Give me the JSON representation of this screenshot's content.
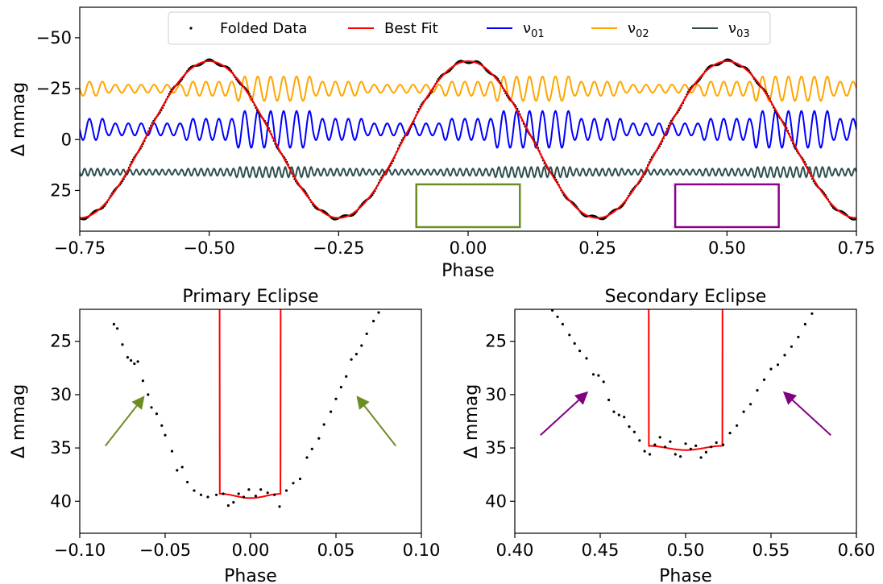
{
  "chart_data": [
    {
      "type": "line",
      "panel": "top",
      "xlabel": "Phase",
      "ylabel": "Δ mmag",
      "xlim": [
        -0.75,
        0.75
      ],
      "ylim": [
        45,
        -65
      ],
      "y_inverted": true,
      "xticks": [
        -0.75,
        -0.5,
        -0.25,
        0.0,
        0.25,
        0.5,
        0.75
      ],
      "xtick_labels": [
        "−0.75",
        "−0.50",
        "−0.25",
        "0.00",
        "0.25",
        "0.50",
        "0.75"
      ],
      "yticks": [
        -50,
        -25,
        0,
        25
      ],
      "ytick_labels": [
        "−50",
        "−25",
        "0",
        "25"
      ],
      "grid": false,
      "legend_position": "top-center",
      "legend": [
        {
          "label": "Folded Data",
          "kind": "points",
          "color": "#000000"
        },
        {
          "label": "Best Fit",
          "kind": "line",
          "color": "#ff0000"
        },
        {
          "label": "ν01",
          "base": "ν",
          "sub": "01",
          "kind": "line",
          "color": "#0000ff"
        },
        {
          "label": "ν02",
          "base": "ν",
          "sub": "02",
          "kind": "line",
          "color": "#ffa500"
        },
        {
          "label": "ν03",
          "base": "ν",
          "sub": "03",
          "kind": "line",
          "color": "#2f4f4f"
        }
      ],
      "best_fit": {
        "amplitude": 38.5,
        "cycles": 2,
        "max_y": -41.5,
        "min_y": 40.0
      },
      "series": [
        {
          "name": "ν01",
          "color": "#0000ff",
          "offset": -5,
          "amplitude": 9,
          "quiet_amplitude": 1.5,
          "frequency_per_phase": 40
        },
        {
          "name": "ν02",
          "color": "#ffa500",
          "offset": -25,
          "amplitude": 6,
          "quiet_amplitude": 1.0,
          "frequency_per_phase": 40
        },
        {
          "name": "ν03",
          "color": "#2f4f4f",
          "offset": 16,
          "amplitude": 2.5,
          "quiet_amplitude": 1.0,
          "frequency_per_phase": 80
        }
      ],
      "highlight_boxes": [
        {
          "name": "primary-eclipse-box",
          "x": [
            -0.1,
            0.1
          ],
          "y": [
            22,
            43
          ],
          "color": "#6b8e23"
        },
        {
          "name": "secondary-eclipse-box",
          "x": [
            0.4,
            0.6
          ],
          "y": [
            22,
            43
          ],
          "color": "#8b008b"
        }
      ]
    },
    {
      "type": "line",
      "panel": "bottom-left",
      "title": "Primary Eclipse",
      "xlabel": "Phase",
      "ylabel": "Δ mmag",
      "xlim": [
        -0.1,
        0.1
      ],
      "ylim": [
        43,
        22
      ],
      "y_inverted": true,
      "xticks": [
        -0.1,
        -0.05,
        0.0,
        0.05,
        0.1
      ],
      "xtick_labels": [
        "−0.10",
        "−0.05",
        "0.00",
        "0.05",
        "0.10"
      ],
      "yticks": [
        25,
        30,
        35,
        40
      ],
      "ytick_labels": [
        "25",
        "30",
        "35",
        "40"
      ],
      "fit_color": "#ff0000",
      "fit": {
        "center": 0.0,
        "depth": 39.5,
        "flat_half_width": 0.018
      },
      "points": [
        [
          -0.08,
          23.4
        ],
        [
          -0.078,
          23.8
        ],
        [
          -0.075,
          25.3
        ],
        [
          -0.072,
          26.5
        ],
        [
          -0.07,
          26.8
        ],
        [
          -0.068,
          27.1
        ],
        [
          -0.066,
          26.9
        ],
        [
          -0.063,
          28.7
        ],
        [
          -0.06,
          30.0
        ],
        [
          -0.058,
          31.2
        ],
        [
          -0.055,
          31.8
        ],
        [
          -0.052,
          32.9
        ],
        [
          -0.05,
          33.8
        ],
        [
          -0.046,
          35.3
        ],
        [
          -0.043,
          37.1
        ],
        [
          -0.04,
          36.8
        ],
        [
          -0.037,
          38.2
        ],
        [
          -0.033,
          39.0
        ],
        [
          -0.029,
          39.4
        ],
        [
          -0.025,
          39.6
        ],
        [
          -0.02,
          39.4
        ],
        [
          -0.016,
          39.3
        ],
        [
          -0.013,
          40.4
        ],
        [
          -0.01,
          40.1
        ],
        [
          -0.007,
          39.3
        ],
        [
          -0.004,
          39.6
        ],
        [
          -0.001,
          38.9
        ],
        [
          0.003,
          39.5
        ],
        [
          0.006,
          38.9
        ],
        [
          0.01,
          39.2
        ],
        [
          0.014,
          39.4
        ],
        [
          0.017,
          40.5
        ],
        [
          0.021,
          39.0
        ],
        [
          0.025,
          38.3
        ],
        [
          0.029,
          37.9
        ],
        [
          0.033,
          35.9
        ],
        [
          0.036,
          35.1
        ],
        [
          0.04,
          34.1
        ],
        [
          0.043,
          32.8
        ],
        [
          0.047,
          31.6
        ],
        [
          0.05,
          30.4
        ],
        [
          0.053,
          29.3
        ],
        [
          0.056,
          28.3
        ],
        [
          0.059,
          26.7
        ],
        [
          0.062,
          26.2
        ],
        [
          0.065,
          25.4
        ],
        [
          0.068,
          24.3
        ],
        [
          0.072,
          23.1
        ],
        [
          0.075,
          22.3
        ]
      ],
      "arrows": [
        {
          "from": [
            -0.085,
            34.8
          ],
          "to": [
            -0.062,
            30.1
          ],
          "color": "#6b8e23"
        },
        {
          "from": [
            0.085,
            34.8
          ],
          "to": [
            0.062,
            30.1
          ],
          "color": "#6b8e23"
        }
      ]
    },
    {
      "type": "line",
      "panel": "bottom-right",
      "title": "Secondary Eclipse",
      "xlabel": "Phase",
      "ylabel": "Δ mmag",
      "xlim": [
        0.4,
        0.6
      ],
      "ylim": [
        43,
        22
      ],
      "y_inverted": true,
      "xticks": [
        0.4,
        0.45,
        0.5,
        0.55,
        0.6
      ],
      "xtick_labels": [
        "0.40",
        "0.45",
        "0.50",
        "0.55",
        "0.60"
      ],
      "yticks": [
        25,
        30,
        35,
        40
      ],
      "ytick_labels": [
        "25",
        "30",
        "35",
        "40"
      ],
      "fit_color": "#ff0000",
      "fit": {
        "center": 0.5,
        "depth": 35.0,
        "flat_half_width": 0.022
      },
      "points": [
        [
          0.422,
          22.1
        ],
        [
          0.425,
          22.7
        ],
        [
          0.428,
          23.4
        ],
        [
          0.432,
          24.4
        ],
        [
          0.435,
          25.2
        ],
        [
          0.438,
          25.9
        ],
        [
          0.442,
          26.6
        ],
        [
          0.446,
          28.1
        ],
        [
          0.449,
          28.2
        ],
        [
          0.452,
          28.8
        ],
        [
          0.455,
          30.5
        ],
        [
          0.458,
          31.6
        ],
        [
          0.461,
          31.9
        ],
        [
          0.464,
          32.1
        ],
        [
          0.467,
          33.0
        ],
        [
          0.47,
          33.5
        ],
        [
          0.473,
          34.3
        ],
        [
          0.476,
          35.3
        ],
        [
          0.479,
          35.6
        ],
        [
          0.482,
          34.7
        ],
        [
          0.485,
          34.0
        ],
        [
          0.488,
          34.9
        ],
        [
          0.491,
          34.4
        ],
        [
          0.494,
          35.6
        ],
        [
          0.497,
          35.8
        ],
        [
          0.5,
          34.6
        ],
        [
          0.503,
          35.1
        ],
        [
          0.506,
          34.8
        ],
        [
          0.509,
          35.9
        ],
        [
          0.512,
          35.4
        ],
        [
          0.515,
          34.9
        ],
        [
          0.518,
          34.5
        ],
        [
          0.522,
          34.7
        ],
        [
          0.526,
          33.6
        ],
        [
          0.53,
          32.9
        ],
        [
          0.534,
          31.6
        ],
        [
          0.538,
          30.9
        ],
        [
          0.542,
          29.6
        ],
        [
          0.546,
          28.6
        ],
        [
          0.55,
          27.6
        ],
        [
          0.554,
          27.2
        ],
        [
          0.558,
          26.3
        ],
        [
          0.562,
          25.5
        ],
        [
          0.566,
          24.6
        ],
        [
          0.57,
          23.4
        ],
        [
          0.574,
          22.4
        ]
      ],
      "arrows": [
        {
          "from": [
            0.415,
            33.8
          ],
          "to": [
            0.443,
            29.7
          ],
          "color": "#800080"
        },
        {
          "from": [
            0.585,
            33.8
          ],
          "to": [
            0.557,
            29.7
          ],
          "color": "#800080"
        }
      ]
    }
  ]
}
